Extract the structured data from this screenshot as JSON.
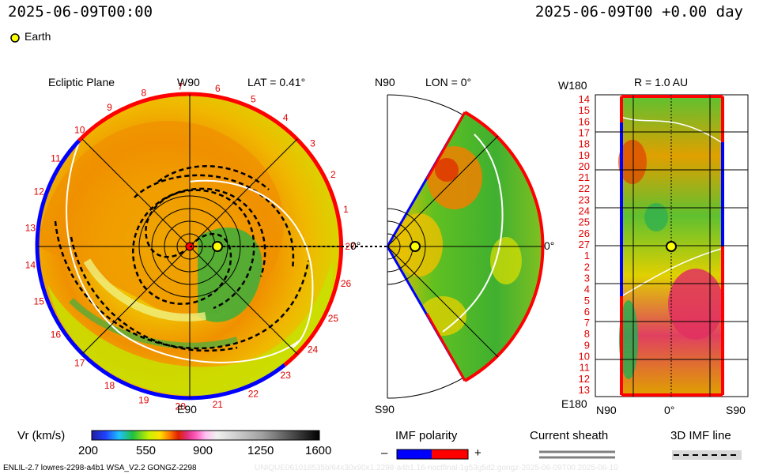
{
  "header": {
    "time_left": "2025-06-09T00:00",
    "time_right": "2025-06-09T00 +0.00 day",
    "earth_label": "Earth",
    "earth_color": "#ffff00"
  },
  "ecliptic": {
    "title": "Ecliptic Plane",
    "top_label": "W90",
    "lat_label": "LAT = 0.41°",
    "bottom_label": "E90",
    "side_label": "0°",
    "carrington_labels": [
      "1",
      "2",
      "3",
      "4",
      "5",
      "6",
      "7",
      "8",
      "9",
      "10",
      "11",
      "12",
      "13",
      "14",
      "15",
      "16",
      "17",
      "18",
      "19",
      "20",
      "21",
      "22",
      "23",
      "24",
      "25",
      "26",
      "27"
    ]
  },
  "meridional": {
    "top_label": "N90",
    "lon_label": "LON = 0°",
    "bottom_label": "S90",
    "right_label": "0°"
  },
  "synoptic": {
    "top_left_label": "W180",
    "r_label": "R = 1.0 AU",
    "bottom_left_label": "E180",
    "x_labels": [
      "N90",
      "0°",
      "S90"
    ],
    "y_labels": [
      "14",
      "15",
      "16",
      "17",
      "18",
      "19",
      "20",
      "21",
      "22",
      "23",
      "24",
      "25",
      "26",
      "27",
      "1",
      "2",
      "3",
      "4",
      "5",
      "6",
      "7",
      "8",
      "9",
      "10",
      "11",
      "12",
      "13"
    ]
  },
  "colorbar": {
    "label": "Vr (km/s)",
    "ticks": [
      "200",
      "550",
      "900",
      "1250",
      "1600"
    ],
    "range": [
      200,
      1600
    ]
  },
  "legend": {
    "imf_title": "IMF polarity",
    "imf_minus": "–",
    "imf_plus": "+",
    "imf_minus_color": "#0000ff",
    "imf_plus_color": "#ff0000",
    "sheath_title": "Current sheath",
    "imf_line_title": "3D IMF line"
  },
  "footer": {
    "model_text": "ENLIL-2.7 lowres-2298-a4b1 WSA_V2.2 GONGZ-2298",
    "faint_text": "UNIQUE061018535b/64x30x90x1.2298-a4b1.16-noctfinal-1g53g5d2.gongz-2025-06-09T00 2025-06-10"
  },
  "chart_data": [
    {
      "type": "heatmap",
      "title": "Ecliptic Plane",
      "quantity": "Vr (km/s)",
      "range": [
        200,
        1600
      ],
      "earth_position_au": 1.0,
      "lat_deg": 0.41
    },
    {
      "type": "heatmap",
      "title": "LON = 0°",
      "quantity": "Vr (km/s)",
      "range": [
        200,
        1600
      ]
    },
    {
      "type": "heatmap",
      "title": "R = 1.0 AU",
      "quantity": "Vr (km/s)",
      "range": [
        200,
        1600
      ]
    }
  ]
}
